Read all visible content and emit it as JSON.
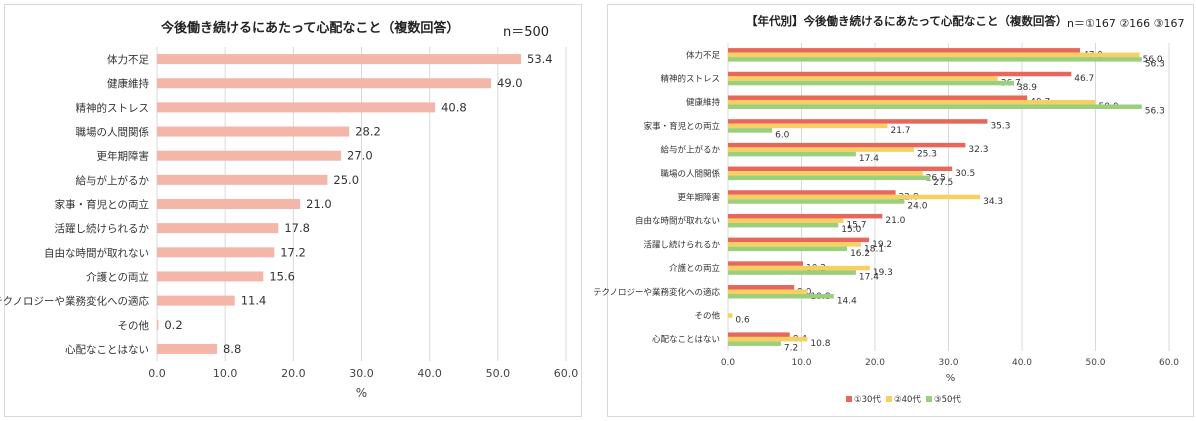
{
  "chart_data": [
    {
      "type": "bar",
      "orientation": "horizontal",
      "title": "今後働き続けるにあたって心配なこと（複数回答）",
      "sample_note": "n＝500",
      "xlabel": "%",
      "xlim": [
        0,
        60
      ],
      "xticks": [
        "0.0",
        "10.0",
        "20.0",
        "30.0",
        "40.0",
        "50.0",
        "60.0"
      ],
      "grid": true,
      "colors": [
        "#f4b6a8"
      ],
      "categories": [
        "体力不足",
        "健康維持",
        "精神的ストレス",
        "職場の人間関係",
        "更年期障害",
        "給与が上がるか",
        "家事・育児との両立",
        "活躍し続けられるか",
        "自由な時間が取れない",
        "介護との両立",
        "テクノロジーや業務変化への適応",
        "その他",
        "心配なことはない"
      ],
      "values": [
        53.4,
        49.0,
        40.8,
        28.2,
        27.0,
        25.0,
        21.0,
        17.8,
        17.2,
        15.6,
        11.4,
        0.2,
        8.8
      ],
      "labels": [
        "53.4",
        "49.0",
        "40.8",
        "28.2",
        "27.0",
        "25.0",
        "21.0",
        "17.8",
        "17.2",
        "15.6",
        "11.4",
        "0.2",
        "8.8"
      ]
    },
    {
      "type": "bar",
      "orientation": "horizontal",
      "title": "【年代別】今後働き続けるにあたって心配なこと（複数回答）",
      "sample_note": "n＝①167 ②166 ③167",
      "xlabel": "%",
      "xlim": [
        0,
        60
      ],
      "xticks": [
        "0.0",
        "10.0",
        "20.0",
        "30.0",
        "40.0",
        "50.0",
        "60.0"
      ],
      "grid": true,
      "legend_position": "bottom",
      "categories": [
        "体力不足",
        "精神的ストレス",
        "健康維持",
        "家事・育児との両立",
        "給与が上がるか",
        "職場の人間関係",
        "更年期障害",
        "自由な時間が取れない",
        "活躍し続けられるか",
        "介護との両立",
        "テクノロジーや業務変化への適応",
        "その他",
        "心配なことはない"
      ],
      "series": [
        {
          "name": "①30代",
          "color": "#e8675c",
          "values": [
            47.9,
            46.7,
            40.7,
            35.3,
            32.3,
            30.5,
            22.8,
            21.0,
            19.2,
            10.2,
            9.0,
            0.0,
            8.4
          ],
          "labels": [
            "47.9",
            "46.7",
            "40.7",
            "35.3",
            "32.3",
            "30.5",
            "22.8",
            "21.0",
            "19.2",
            "10.2",
            "9.0",
            "",
            "8.4"
          ]
        },
        {
          "name": "②40代",
          "color": "#f8d061",
          "values": [
            56.0,
            36.7,
            50.0,
            21.7,
            25.3,
            26.5,
            34.3,
            15.7,
            18.1,
            19.3,
            10.8,
            0.6,
            10.8
          ],
          "labels": [
            "56.0",
            "36.7",
            "50.0",
            "21.7",
            "25.3",
            "26.5",
            "34.3",
            "15.7",
            "18.1",
            "19.3",
            "10.8",
            "0.6",
            "10.8"
          ]
        },
        {
          "name": "③50代",
          "color": "#9ccf7c",
          "values": [
            56.3,
            38.9,
            56.3,
            6.0,
            17.4,
            27.5,
            24.0,
            15.0,
            16.2,
            17.4,
            14.4,
            0.0,
            7.2
          ],
          "labels": [
            "56.3",
            "38.9",
            "56.3",
            "6.0",
            "17.4",
            "27.5",
            "24.0",
            "15.0",
            "16.2",
            "17.4",
            "14.4",
            "",
            "7.2"
          ]
        }
      ]
    }
  ]
}
